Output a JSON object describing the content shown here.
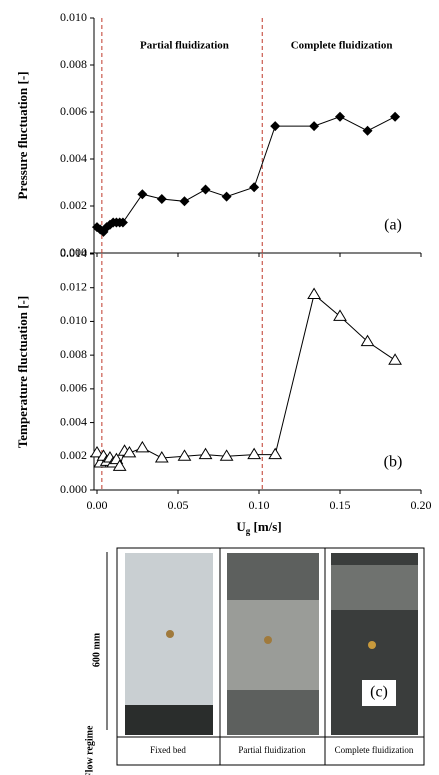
{
  "chart_data": [
    {
      "type": "line",
      "y_label": "Pressure fluctuation [-]",
      "marker": "diamond",
      "color": "#000000",
      "annotations": [
        "Partial fluidization",
        "Complete fluidization"
      ],
      "panel_label": "(a)",
      "vlines": [
        0.003,
        0.102
      ],
      "vline_color": "#c0392b",
      "x": [
        0.0,
        0.002,
        0.004,
        0.006,
        0.008,
        0.01,
        0.012,
        0.014,
        0.016,
        0.028,
        0.04,
        0.054,
        0.067,
        0.08,
        0.097,
        0.11,
        0.134,
        0.15,
        0.167,
        0.184
      ],
      "values": [
        0.0011,
        0.001,
        0.0009,
        0.0011,
        0.0012,
        0.0013,
        0.0013,
        0.0013,
        0.0013,
        0.0025,
        0.0023,
        0.0022,
        0.0027,
        0.0024,
        0.0028,
        0.0054,
        0.0054,
        0.0058,
        0.0052,
        0.0058
      ],
      "xlim": [
        0,
        0.2
      ],
      "xticks": [
        0,
        0.05,
        0.1,
        0.15,
        0.2
      ],
      "ylim": [
        0,
        0.01
      ],
      "yticks": [
        {
          "value": 0,
          "label": "0.000"
        },
        {
          "value": 0.002,
          "label": "0.002"
        },
        {
          "value": 0.004,
          "label": "0.004"
        },
        {
          "value": 0.006,
          "label": "0.006"
        },
        {
          "value": 0.008,
          "label": "0.008"
        },
        {
          "value": 0.01,
          "label": "0.010"
        }
      ]
    },
    {
      "type": "line",
      "y_label": "Temperature fluctuation [-]",
      "marker": "triangle",
      "color": "#000000",
      "panel_label": "(b)",
      "vlines": [
        0.003,
        0.102
      ],
      "vline_color": "#c0392b",
      "x_label": {
        "main": "U",
        "sub": "g",
        "rest": " [m/s]"
      },
      "x": [
        0.0,
        0.002,
        0.004,
        0.006,
        0.008,
        0.01,
        0.012,
        0.014,
        0.017,
        0.02,
        0.028,
        0.04,
        0.054,
        0.067,
        0.08,
        0.097,
        0.11,
        0.134,
        0.15,
        0.167,
        0.184
      ],
      "values": [
        0.0022,
        0.0016,
        0.002,
        0.0017,
        0.0019,
        0.0016,
        0.0018,
        0.0014,
        0.0023,
        0.0022,
        0.0025,
        0.0019,
        0.002,
        0.0021,
        0.002,
        0.0021,
        0.0021,
        0.0116,
        0.0103,
        0.0088,
        0.0077
      ],
      "xlim": [
        0,
        0.2
      ],
      "xticks": [
        {
          "value": 0,
          "label": "0.00"
        },
        {
          "value": 0.05,
          "label": "0.05"
        },
        {
          "value": 0.1,
          "label": "0.10"
        },
        {
          "value": 0.15,
          "label": "0.15"
        },
        {
          "value": 0.2,
          "label": "0.20"
        }
      ],
      "ylim": [
        0,
        0.014
      ],
      "yticks": [
        {
          "value": 0,
          "label": "0.000"
        },
        {
          "value": 0.002,
          "label": "0.002"
        },
        {
          "value": 0.004,
          "label": "0.004"
        },
        {
          "value": 0.006,
          "label": "0.006"
        },
        {
          "value": 0.008,
          "label": "0.008"
        },
        {
          "value": 0.01,
          "label": "0.010"
        },
        {
          "value": 0.012,
          "label": "0.012"
        },
        {
          "value": 0.014,
          "label": "0.014"
        }
      ]
    }
  ],
  "panel_c": {
    "height_label": "600 mm",
    "row_label": "Flow regime",
    "panel_label": "(c)",
    "regimes": [
      "Fixed bed",
      "Partial fluidization",
      "Complete fluidization"
    ]
  }
}
